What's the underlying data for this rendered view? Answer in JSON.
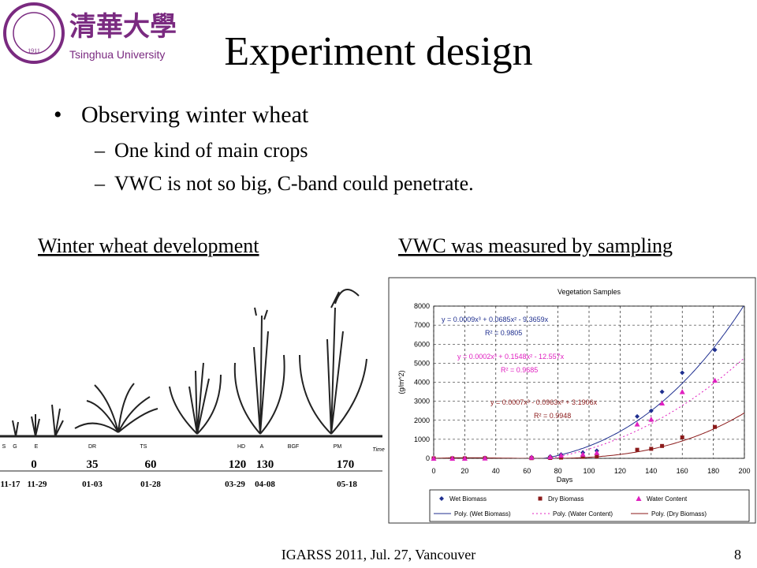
{
  "header": {
    "logo_cn": "清華大學",
    "logo_en": "Tsinghua University",
    "logo_year": "1911",
    "title": "Experiment design"
  },
  "bullets": [
    {
      "text": "Observing winter wheat",
      "sub": [
        "One kind of main crops",
        "VWC is not so big, C-band could penetrate."
      ]
    }
  ],
  "left_caption": "Winter wheat development",
  "right_caption": "VWC was measured by sampling",
  "growth": {
    "stages": [
      "S",
      "G",
      "E",
      "DR",
      "TS",
      "HD",
      "A",
      "BGF",
      "PM"
    ],
    "time_label": "Time",
    "days": [
      "0",
      "35",
      "60",
      "120",
      "130",
      "170"
    ],
    "dates": [
      "11-17",
      "11-29",
      "01-03",
      "01-28",
      "03-29",
      "04-08",
      "05-18"
    ]
  },
  "chart_data": {
    "type": "scatter",
    "title": "Vegetation Samples",
    "xlabel": "Days",
    "ylabel": "(g/m^2)",
    "x": [
      0,
      12,
      20,
      33,
      63,
      75,
      82,
      96,
      105,
      131,
      140,
      147,
      160,
      181
    ],
    "series": [
      {
        "name": "Wet Biomass",
        "color": "#1f2f8f",
        "marker": "diamond",
        "values": [
          0,
          0,
          0,
          20,
          60,
          100,
          200,
          300,
          400,
          2200,
          2500,
          3500,
          4500,
          5700
        ]
      },
      {
        "name": "Dry Biomass",
        "color": "#8b1a1a",
        "marker": "square",
        "values": [
          0,
          0,
          0,
          10,
          10,
          20,
          40,
          80,
          100,
          450,
          500,
          650,
          1100,
          1650
        ]
      },
      {
        "name": "Water Content",
        "color": "#e020c0",
        "marker": "triangle",
        "values": [
          0,
          0,
          0,
          10,
          50,
          80,
          160,
          220,
          300,
          1800,
          2050,
          2900,
          3500,
          4100
        ]
      }
    ],
    "trendlines": [
      {
        "name": "Poly. (Wet Biomass)",
        "color": "#1f2f8f",
        "style": "solid",
        "equation": "y = 0.0009x³ + 0.0685x² - 9.3659x",
        "r2": "R² = 0.9805"
      },
      {
        "name": "Poly. (Water Content)",
        "color": "#e020c0",
        "style": "dotted",
        "equation": "y = 0.0002x³ + 0.1548x² - 12.557x",
        "r2": "R² = 0.9685"
      },
      {
        "name": "Poly. (Dry Biomass)",
        "color": "#8b1a1a",
        "style": "solid",
        "equation": "y = 0.0007x³ - 0.0963x² + 3.1906x",
        "r2": "R² = 0.9948"
      }
    ],
    "xlim": [
      0,
      200
    ],
    "xticks": [
      0,
      20,
      40,
      60,
      80,
      100,
      120,
      140,
      160,
      180,
      200
    ],
    "ylim": [
      0,
      8000
    ],
    "yticks": [
      0,
      1000,
      2000,
      3000,
      4000,
      5000,
      6000,
      7000,
      8000
    ],
    "grid": true
  },
  "footer": {
    "text": "IGARSS 2011, Jul. 27, Vancouver",
    "page": "8"
  }
}
